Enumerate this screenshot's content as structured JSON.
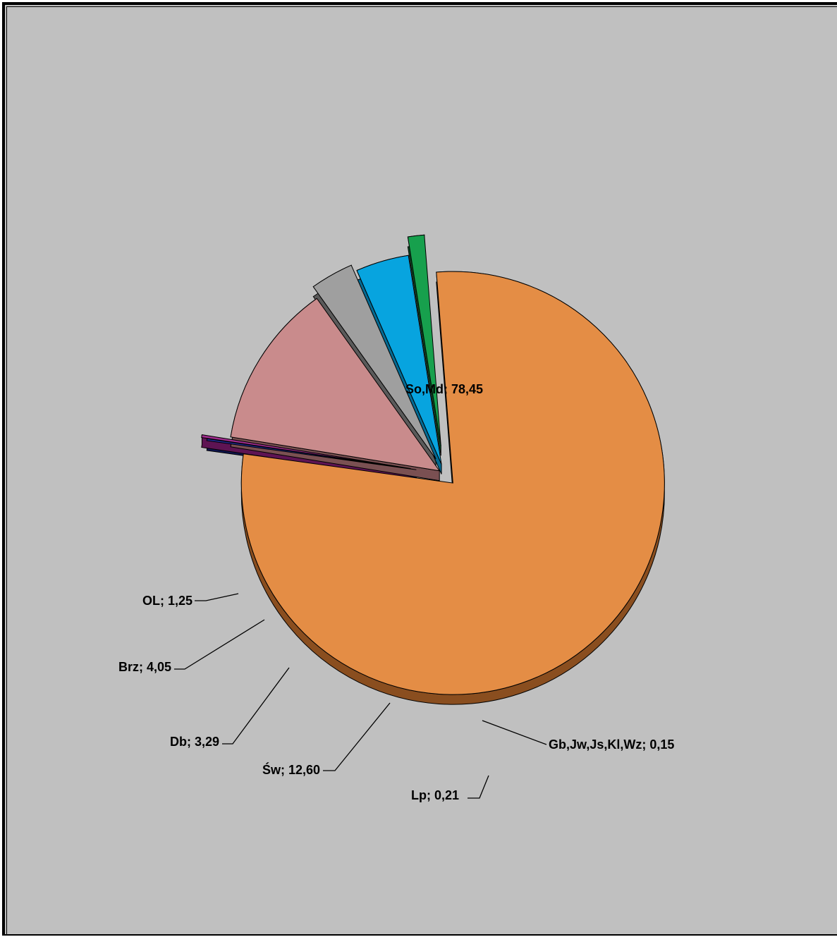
{
  "chart_data": {
    "type": "pie",
    "title": "",
    "slices": [
      {
        "label": "So,Md; 78,45",
        "value": 78.45,
        "color": "#e48d45",
        "side": "#8a4e1f"
      },
      {
        "label": "Gb,Jw,Js,Kl,Wz; 0,15",
        "value": 0.15,
        "color": "#1f2a8c",
        "side": "#0f1550"
      },
      {
        "label": "Lp; 0,21",
        "value": 0.21,
        "color": "#a02c8e",
        "side": "#5e1453"
      },
      {
        "label": "Św; 12,60",
        "value": 12.6,
        "color": "#c98b8c",
        "side": "#7a5052"
      },
      {
        "label": "Db; 3,29",
        "value": 3.29,
        "color": "#9f9f9f",
        "side": "#5a5a5a"
      },
      {
        "label": "Brz; 4,05",
        "value": 4.05,
        "color": "#07a4df",
        "side": "#046a92"
      },
      {
        "label": "OL; 1,25",
        "value": 1.25,
        "color": "#17a04d",
        "side": "#0b5a2a"
      }
    ],
    "legend": "none",
    "style": "3d-exploded"
  }
}
